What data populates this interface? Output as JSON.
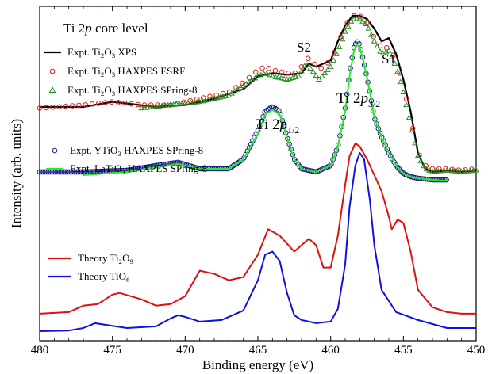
{
  "chart_data": {
    "type": "line",
    "title": "Ti 2p core level",
    "xlabel": "Binding energy (eV)",
    "ylabel": "Intensity (arb. units)",
    "xlim": [
      480,
      450
    ],
    "x_reversed": true,
    "ylim": [
      0,
      1
    ],
    "y_ticks_labeled": false,
    "grid": false,
    "legend_upper": [
      {
        "text": "Expt. Ti₂O₃ XPS",
        "series": "xps",
        "color": "#000000",
        "marker": "line"
      },
      {
        "text": "Expt. Ti₂O₃ HAXPES ESRF",
        "series": "esrf",
        "color": "#e02020",
        "marker": "circle"
      },
      {
        "text": "Expt. Ti₂O₃ HAXPES SPring-8",
        "series": "spring8_ti2o3",
        "color": "#228b22",
        "marker": "triangle"
      }
    ],
    "legend_middle": [
      {
        "text": "Expt. YTiO₃ HAXPES SPring-8",
        "series": "ytio3",
        "color": "#1c1c8c",
        "marker": "circle"
      },
      {
        "text": "Expt. LaTiO₃ HAXPES SPring-8",
        "series": "latio3",
        "color": "#22ee22",
        "marker": "line"
      }
    ],
    "legend_lower": [
      {
        "text": "Theory Ti₂O₉",
        "series": "theory_ti2o9",
        "color": "#e01010",
        "marker": "line"
      },
      {
        "text": "Theory TiO₆",
        "series": "theory_tio6",
        "color": "#1010e0",
        "marker": "line"
      }
    ],
    "annotations": {
      "s1": "S1",
      "s2": "S2",
      "ti2p12": "Ti 2p1/2",
      "ti2p32": "Ti 2p3/2"
    },
    "x_ticks": [
      480,
      475,
      470,
      465,
      460,
      455,
      450
    ],
    "series": [
      {
        "name": "Expt. Ti₂O₃ XPS",
        "key": "xps",
        "color": "#000000",
        "x": [
          480,
          477,
          475,
          472,
          470,
          468,
          466,
          465,
          464,
          463,
          462,
          461.5,
          461,
          460,
          459.5,
          459,
          458.5,
          458,
          457.5,
          457,
          456.5,
          456,
          455.5,
          455,
          454.5,
          454,
          453.5,
          453,
          452,
          451,
          450
        ],
        "y": [
          0.714,
          0.714,
          0.73,
          0.714,
          0.72,
          0.74,
          0.77,
          0.81,
          0.82,
          0.815,
          0.82,
          0.85,
          0.84,
          0.86,
          0.92,
          0.97,
          1.0,
          1.0,
          0.99,
          0.96,
          0.92,
          0.93,
          0.88,
          0.8,
          0.7,
          0.57,
          0.52,
          0.51,
          0.515,
          0.51,
          0.515
        ]
      },
      {
        "name": "Expt. Ti₂O₃ HAXPES ESRF",
        "key": "esrf",
        "color": "#e02020",
        "x": [
          480,
          477,
          475,
          473,
          471,
          469,
          467,
          466,
          465,
          464.5,
          464,
          463,
          462.2,
          461.7,
          461.3,
          460.8,
          460,
          459.5,
          459,
          458.5,
          458,
          457.5,
          457,
          456.5,
          456,
          455.5,
          455,
          454.5,
          454,
          453.5,
          453,
          452,
          451,
          450
        ],
        "y": [
          0.71,
          0.72,
          0.73,
          0.72,
          0.72,
          0.74,
          0.76,
          0.79,
          0.83,
          0.84,
          0.83,
          0.82,
          0.82,
          0.87,
          0.86,
          0.83,
          0.86,
          0.91,
          0.97,
          1.0,
          1.0,
          0.98,
          0.93,
          0.9,
          0.9,
          0.86,
          0.78,
          0.68,
          0.57,
          0.53,
          0.52,
          0.52,
          0.515,
          0.52
        ]
      },
      {
        "name": "Expt. Ti₂O₃ HAXPES SPring-8",
        "key": "spring8_ti2o3",
        "color": "#228b22",
        "x": [
          473,
          471,
          469,
          467,
          466,
          465,
          464.5,
          464,
          463,
          462.2,
          461.7,
          461.3,
          460.8,
          460,
          459.5,
          459,
          458.5,
          458,
          457.5,
          457,
          456.5,
          456,
          455.5,
          455,
          454.5,
          454,
          453.5,
          453,
          452,
          451,
          450
        ],
        "y": [
          0.71,
          0.72,
          0.73,
          0.75,
          0.78,
          0.81,
          0.82,
          0.81,
          0.8,
          0.81,
          0.85,
          0.83,
          0.8,
          0.84,
          0.89,
          0.95,
          0.99,
          0.99,
          0.97,
          0.92,
          0.88,
          0.89,
          0.84,
          0.76,
          0.66,
          0.56,
          0.52,
          0.51,
          0.515,
          0.51,
          0.515
        ]
      },
      {
        "name": "Expt. YTiO₃ HAXPES SPring-8",
        "key": "ytio3",
        "color": "#1c1c8c",
        "x": [
          480,
          477,
          474,
          472,
          470.5,
          469,
          467,
          466,
          465,
          464.5,
          464,
          463.5,
          463,
          462.5,
          462,
          461,
          460,
          459.5,
          459,
          458.7,
          458.4,
          458.2,
          458,
          457.7,
          457.3,
          457,
          456.5,
          456,
          455.5,
          455,
          454.5,
          454,
          453,
          452
        ],
        "y": [
          0.51,
          0.51,
          0.515,
          0.53,
          0.54,
          0.52,
          0.52,
          0.55,
          0.64,
          0.7,
          0.715,
          0.7,
          0.62,
          0.55,
          0.52,
          0.51,
          0.53,
          0.59,
          0.71,
          0.82,
          0.9,
          0.92,
          0.91,
          0.85,
          0.76,
          0.68,
          0.62,
          0.57,
          0.53,
          0.505,
          0.495,
          0.49,
          0.485,
          0.485
        ]
      },
      {
        "name": "Expt. LaTiO₃ HAXPES SPring-8",
        "key": "latio3",
        "color": "#22ee22",
        "x": [
          477,
          474,
          472,
          470.5,
          469,
          467,
          466,
          465,
          464.5,
          464,
          463.5,
          463,
          462.5,
          462,
          461,
          460,
          459.5,
          459,
          458.7,
          458.4,
          458.2,
          458,
          457.7,
          457.3,
          457,
          456.5,
          456,
          455.5,
          455,
          454.5,
          454,
          453,
          452
        ],
        "y": [
          0.5,
          0.51,
          0.525,
          0.535,
          0.52,
          0.52,
          0.55,
          0.63,
          0.69,
          0.705,
          0.69,
          0.62,
          0.55,
          0.52,
          0.51,
          0.53,
          0.59,
          0.7,
          0.81,
          0.89,
          0.91,
          0.9,
          0.85,
          0.76,
          0.68,
          0.62,
          0.57,
          0.53,
          0.505,
          0.495,
          0.49,
          0.485,
          0.482
        ]
      },
      {
        "name": "Theory Ti₂O₉",
        "key": "theory_ti2o9",
        "color": "#e01010",
        "x": [
          480,
          478,
          477,
          476,
          475,
          474.5,
          473,
          472,
          471,
          470,
          469,
          468,
          467,
          466,
          465,
          464.3,
          463.5,
          462.5,
          461.5,
          461,
          460.5,
          460,
          459.5,
          459,
          458.7,
          458.3,
          458,
          457.5,
          457,
          456.5,
          456,
          455.8,
          455.4,
          455,
          454.5,
          454,
          453,
          452,
          451,
          450
        ],
        "y": [
          0.065,
          0.07,
          0.09,
          0.095,
          0.125,
          0.13,
          0.11,
          0.09,
          0.095,
          0.12,
          0.2,
          0.19,
          0.17,
          0.18,
          0.25,
          0.33,
          0.31,
          0.26,
          0.3,
          0.28,
          0.21,
          0.21,
          0.31,
          0.47,
          0.56,
          0.6,
          0.59,
          0.55,
          0.5,
          0.45,
          0.37,
          0.33,
          0.36,
          0.35,
          0.26,
          0.14,
          0.085,
          0.07,
          0.065,
          0.065
        ]
      },
      {
        "name": "Theory TiO₆",
        "key": "theory_tio6",
        "color": "#1010e0",
        "x": [
          480,
          478,
          477,
          476.2,
          475.5,
          474,
          472,
          471,
          470.5,
          470,
          469,
          467.5,
          466,
          465,
          464.5,
          464,
          463.5,
          463,
          462.5,
          462,
          461.5,
          461,
          460,
          459.5,
          459,
          458.7,
          458.3,
          458,
          457.7,
          457.3,
          457,
          456.5,
          455.5,
          454,
          452,
          450
        ],
        "y": [
          0.01,
          0.012,
          0.02,
          0.035,
          0.03,
          0.02,
          0.025,
          0.05,
          0.06,
          0.055,
          0.04,
          0.045,
          0.075,
          0.17,
          0.25,
          0.26,
          0.23,
          0.13,
          0.06,
          0.045,
          0.04,
          0.035,
          0.04,
          0.08,
          0.22,
          0.4,
          0.53,
          0.57,
          0.55,
          0.42,
          0.28,
          0.14,
          0.07,
          0.045,
          0.02,
          0.02
        ]
      }
    ]
  }
}
